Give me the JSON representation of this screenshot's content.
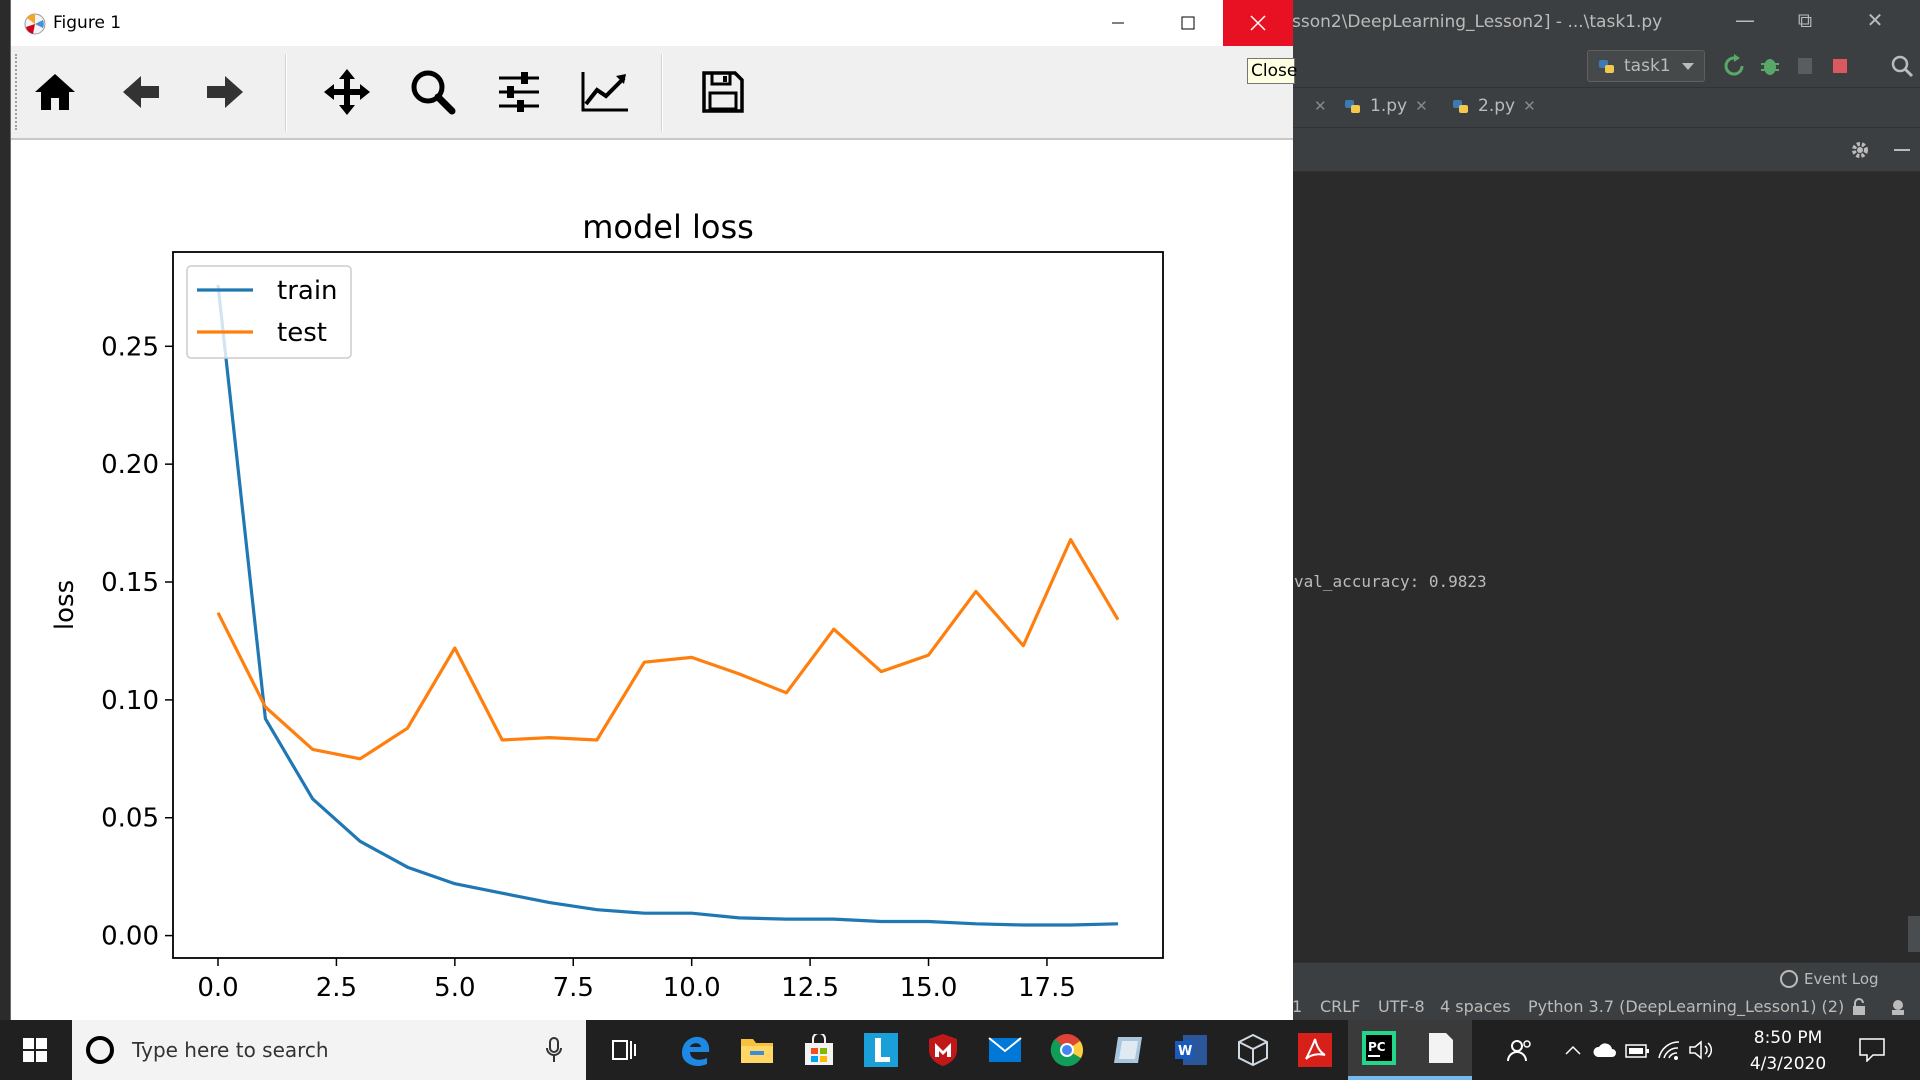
{
  "ide": {
    "title_path": "sson2\\DeepLearning_Lesson2] - ...\\task1.py",
    "run_config": "task1",
    "tabs": [
      {
        "label": "1.py"
      },
      {
        "label": "2.py"
      }
    ],
    "console_text": "val_accuracy: 0.9823",
    "event_log": "Event Log",
    "status": {
      "line_sep": "CRLF",
      "encoding": "UTF-8",
      "indent": "4 spaces",
      "interpreter": "Python 3.7 (DeepLearning_Lesson1) (2)",
      "col": "1"
    }
  },
  "figure": {
    "window_title": "Figure 1",
    "tooltip": "Close",
    "toolbar": [
      "home-icon",
      "back-icon",
      "forward-icon",
      "pan-icon",
      "zoom-icon",
      "configure-subplots-icon",
      "edit-axis-icon",
      "save-icon"
    ]
  },
  "chart_data": {
    "type": "line",
    "title": "model loss",
    "xlabel": "",
    "ylabel": "loss",
    "xlim": [
      -0.95,
      19.95
    ],
    "ylim": [
      -0.0095,
      0.29
    ],
    "xticks": [
      "0.0",
      "2.5",
      "5.0",
      "7.5",
      "10.0",
      "12.5",
      "15.0",
      "17.5"
    ],
    "xtick_values": [
      0,
      2.5,
      5,
      7.5,
      10,
      12.5,
      15,
      17.5
    ],
    "yticks": [
      "0.00",
      "0.05",
      "0.10",
      "0.15",
      "0.20",
      "0.25"
    ],
    "ytick_values": [
      0,
      0.05,
      0.1,
      0.15,
      0.2,
      0.25
    ],
    "legend_position": "upper-left",
    "x": [
      0,
      1,
      2,
      3,
      4,
      5,
      6,
      7,
      8,
      9,
      10,
      11,
      12,
      13,
      14,
      15,
      16,
      17,
      18,
      19
    ],
    "series": [
      {
        "name": "train",
        "color": "#1f77b4",
        "values": [
          0.276,
          0.092,
          0.058,
          0.04,
          0.029,
          0.022,
          0.018,
          0.014,
          0.011,
          0.0095,
          0.0095,
          0.0075,
          0.007,
          0.007,
          0.006,
          0.006,
          0.005,
          0.0045,
          0.0045,
          0.005
        ]
      },
      {
        "name": "test",
        "color": "#ff7f0e",
        "values": [
          0.137,
          0.097,
          0.079,
          0.075,
          0.088,
          0.122,
          0.083,
          0.084,
          0.083,
          0.116,
          0.118,
          0.111,
          0.103,
          0.13,
          0.112,
          0.119,
          0.146,
          0.123,
          0.168,
          0.134
        ]
      }
    ]
  },
  "taskbar": {
    "search_placeholder": "Type here to search",
    "time": "8:50 PM",
    "date": "4/3/2020"
  }
}
